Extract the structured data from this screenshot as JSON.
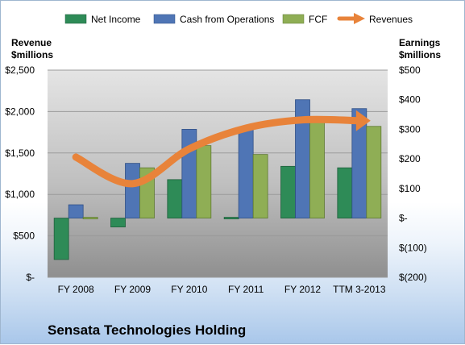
{
  "chart_data": {
    "type": "bar",
    "company": "Sensata Technologies Holding",
    "categories": [
      "FY 2008",
      "FY 2009",
      "FY 2010",
      "FY 2011",
      "FY 2012",
      "TTM 3-2013"
    ],
    "left_axis": {
      "title_line1": "Revenue",
      "title_line2": "$millions",
      "range": [
        0,
        2500
      ],
      "ticks": [
        0,
        500,
        1000,
        1500,
        2000,
        2500
      ],
      "tick_labels": [
        "$-",
        "$500",
        "$1,000",
        "$1,500",
        "$2,000",
        "$2,500"
      ]
    },
    "right_axis": {
      "title_line1": "Earnings",
      "title_line2": "$millions",
      "range": [
        -200,
        500
      ],
      "ticks": [
        -200,
        -100,
        0,
        100,
        200,
        300,
        400,
        500
      ],
      "tick_labels": [
        "$(200)",
        "$(100)",
        "$-",
        "$100",
        "$200",
        "$300",
        "$400",
        "$500"
      ]
    },
    "series": [
      {
        "name": "Net Income",
        "axis": "right",
        "kind": "bar",
        "color": "#2e8b57",
        "values": [
          -140,
          -30,
          130,
          0,
          175,
          170
        ]
      },
      {
        "name": "Cash from Operations",
        "axis": "right",
        "kind": "bar",
        "color": "#4f75b5",
        "values": [
          45,
          185,
          300,
          300,
          400,
          370
        ]
      },
      {
        "name": "FCF",
        "axis": "right",
        "kind": "bar",
        "color": "#8fae55",
        "values": [
          0,
          170,
          245,
          215,
          340,
          310
        ]
      },
      {
        "name": "Revenues",
        "axis": "left",
        "kind": "line",
        "color": "#e8833a",
        "values": [
          1450,
          1130,
          1550,
          1800,
          1900,
          1890
        ]
      }
    ],
    "grid": true,
    "legend": "top"
  }
}
